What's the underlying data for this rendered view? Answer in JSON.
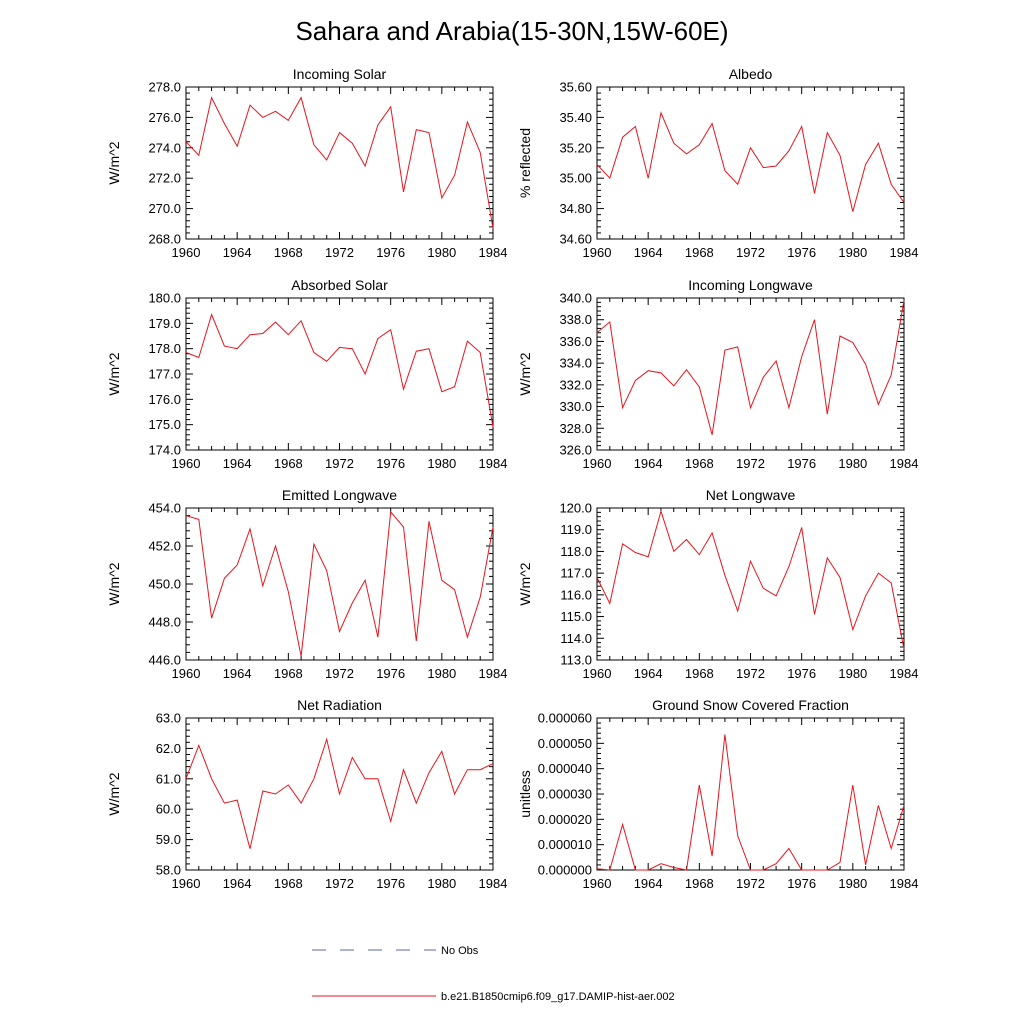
{
  "figure": {
    "title": "Sahara and Arabia(15-30N,15W-60E)"
  },
  "colors": {
    "model": "#e8141c",
    "obs": "#5a64b8",
    "axis": "#000000"
  },
  "legend": {
    "placement": "bottom-center",
    "items": [
      {
        "label": "No Obs",
        "style": "dashed",
        "color": "#5a64b8"
      },
      {
        "label": "b.e21.B1850cmip6.f09_g17.DAMIP-hist-aer.002",
        "style": "solid",
        "color": "#e8141c"
      }
    ]
  },
  "chart_data": [
    {
      "type": "line",
      "title": "Incoming Solar",
      "ylabel": "W/m^2",
      "xlim": [
        1960,
        1984
      ],
      "ylim": [
        268,
        278
      ],
      "grid": false,
      "x_ticks": [
        "1960",
        "1964",
        "1968",
        "1972",
        "1976",
        "1980",
        "1984"
      ],
      "y_ticks": [
        "268.0",
        "270.0",
        "272.0",
        "274.0",
        "276.0",
        "278.0"
      ],
      "series": [
        {
          "values": [
            274.4,
            273.5,
            277.3,
            275.6,
            274.1,
            276.8,
            276.0,
            276.4,
            275.8,
            277.3,
            274.2,
            273.2,
            275.0,
            274.3,
            272.8,
            275.5,
            276.7,
            271.1,
            275.2,
            275.0,
            270.7,
            272.2,
            275.7,
            273.7,
            268.7
          ]
        }
      ]
    },
    {
      "type": "line",
      "title": "Albedo",
      "ylabel": "% reflected",
      "xlim": [
        1960,
        1984
      ],
      "ylim": [
        34.6,
        35.6
      ],
      "grid": false,
      "x_ticks": [
        "1960",
        "1964",
        "1968",
        "1972",
        "1976",
        "1980",
        "1984"
      ],
      "y_ticks": [
        "34.60",
        "34.80",
        "35.00",
        "35.20",
        "35.40",
        "35.60"
      ],
      "series": [
        {
          "values": [
            35.09,
            35.0,
            35.27,
            35.34,
            35.0,
            35.43,
            35.23,
            35.16,
            35.22,
            35.36,
            35.05,
            34.96,
            35.2,
            35.07,
            35.08,
            35.18,
            35.34,
            34.9,
            35.3,
            35.15,
            34.78,
            35.09,
            35.23,
            34.96,
            34.84
          ]
        }
      ]
    },
    {
      "type": "line",
      "title": "Absorbed Solar",
      "ylabel": "W/m^2",
      "xlim": [
        1960,
        1984
      ],
      "ylim": [
        174,
        180
      ],
      "grid": false,
      "x_ticks": [
        "1960",
        "1964",
        "1968",
        "1972",
        "1976",
        "1980",
        "1984"
      ],
      "y_ticks": [
        "174.0",
        "175.0",
        "176.0",
        "177.0",
        "178.0",
        "179.0",
        "180.0"
      ],
      "series": [
        {
          "values": [
            177.85,
            177.65,
            179.35,
            178.1,
            178.0,
            178.55,
            178.6,
            179.05,
            178.55,
            179.1,
            177.85,
            177.5,
            178.05,
            178.0,
            177.0,
            178.4,
            178.75,
            176.4,
            177.9,
            178.0,
            176.3,
            176.5,
            178.3,
            177.85,
            174.9
          ]
        }
      ]
    },
    {
      "type": "line",
      "title": "Incoming Longwave",
      "ylabel": "W/m^2",
      "xlim": [
        1960,
        1984
      ],
      "ylim": [
        326,
        340
      ],
      "grid": false,
      "x_ticks": [
        "1960",
        "1964",
        "1968",
        "1972",
        "1976",
        "1980",
        "1984"
      ],
      "y_ticks": [
        "326.0",
        "328.0",
        "330.0",
        "332.0",
        "334.0",
        "336.0",
        "338.0",
        "340.0"
      ],
      "series": [
        {
          "values": [
            336.8,
            337.8,
            329.9,
            332.4,
            333.3,
            333.1,
            331.9,
            333.4,
            331.8,
            327.4,
            335.2,
            335.5,
            329.9,
            332.7,
            334.2,
            329.9,
            334.6,
            338.0,
            329.3,
            336.5,
            335.9,
            333.9,
            330.2,
            332.9,
            339.8
          ]
        }
      ]
    },
    {
      "type": "line",
      "title": "Emitted Longwave",
      "ylabel": "W/m^2",
      "xlim": [
        1960,
        1984
      ],
      "ylim": [
        446,
        454
      ],
      "grid": false,
      "x_ticks": [
        "1960",
        "1964",
        "1968",
        "1972",
        "1976",
        "1980",
        "1984"
      ],
      "y_ticks": [
        "446.0",
        "448.0",
        "450.0",
        "452.0",
        "454.0"
      ],
      "series": [
        {
          "values": [
            453.6,
            453.4,
            448.2,
            450.3,
            451.0,
            452.9,
            449.9,
            452.0,
            449.6,
            446.2,
            452.1,
            450.7,
            447.5,
            449.0,
            450.2,
            447.2,
            453.8,
            453.0,
            447.0,
            453.3,
            450.2,
            449.7,
            447.2,
            449.3,
            453.0
          ]
        }
      ]
    },
    {
      "type": "line",
      "title": "Net Longwave",
      "ylabel": "W/m^2",
      "xlim": [
        1960,
        1984
      ],
      "ylim": [
        113,
        120
      ],
      "grid": false,
      "x_ticks": [
        "1960",
        "1964",
        "1968",
        "1972",
        "1976",
        "1980",
        "1984"
      ],
      "y_ticks": [
        "113.0",
        "114.0",
        "115.0",
        "116.0",
        "117.0",
        "118.0",
        "119.0",
        "120.0"
      ],
      "series": [
        {
          "values": [
            116.8,
            115.6,
            118.35,
            117.95,
            117.75,
            119.85,
            118.0,
            118.55,
            117.85,
            118.85,
            116.9,
            115.25,
            117.55,
            116.3,
            115.95,
            117.3,
            119.1,
            115.1,
            117.7,
            116.8,
            114.4,
            115.95,
            117.0,
            116.55,
            113.5
          ]
        }
      ]
    },
    {
      "type": "line",
      "title": "Net Radiation",
      "ylabel": "W/m^2",
      "xlim": [
        1960,
        1984
      ],
      "ylim": [
        58,
        63
      ],
      "grid": false,
      "x_ticks": [
        "1960",
        "1964",
        "1968",
        "1972",
        "1976",
        "1980",
        "1984"
      ],
      "y_ticks": [
        "58.0",
        "59.0",
        "60.0",
        "61.0",
        "62.0",
        "63.0"
      ],
      "series": [
        {
          "values": [
            61.0,
            62.1,
            61.0,
            60.2,
            60.3,
            58.7,
            60.6,
            60.5,
            60.8,
            60.2,
            61.0,
            62.3,
            60.5,
            61.7,
            61.0,
            61.0,
            59.6,
            61.3,
            60.2,
            61.2,
            61.9,
            60.5,
            61.3,
            61.3,
            61.5
          ]
        }
      ]
    },
    {
      "type": "line",
      "title": "Ground Snow Covered Fraction",
      "ylabel": "unitless",
      "xlim": [
        1960,
        1984
      ],
      "ylim": [
        0,
        6e-05
      ],
      "grid": false,
      "x_ticks": [
        "1960",
        "1964",
        "1968",
        "1972",
        "1976",
        "1980",
        "1984"
      ],
      "y_ticks": [
        "0.000000",
        "0.000010",
        "0.000020",
        "0.000030",
        "0.000040",
        "0.000050",
        "0.000060"
      ],
      "series": [
        {
          "values": [
            5e-07,
            0,
            1.8e-05,
            0,
            0,
            2.5e-06,
            1e-06,
            0,
            3.35e-05,
            5.5e-06,
            5.35e-05,
            1.35e-05,
            0,
            0,
            2.5e-06,
            8.5e-06,
            0,
            0,
            0,
            3e-06,
            3.35e-05,
            2e-06,
            2.55e-05,
            8.5e-06,
            2.55e-05
          ]
        }
      ]
    }
  ]
}
